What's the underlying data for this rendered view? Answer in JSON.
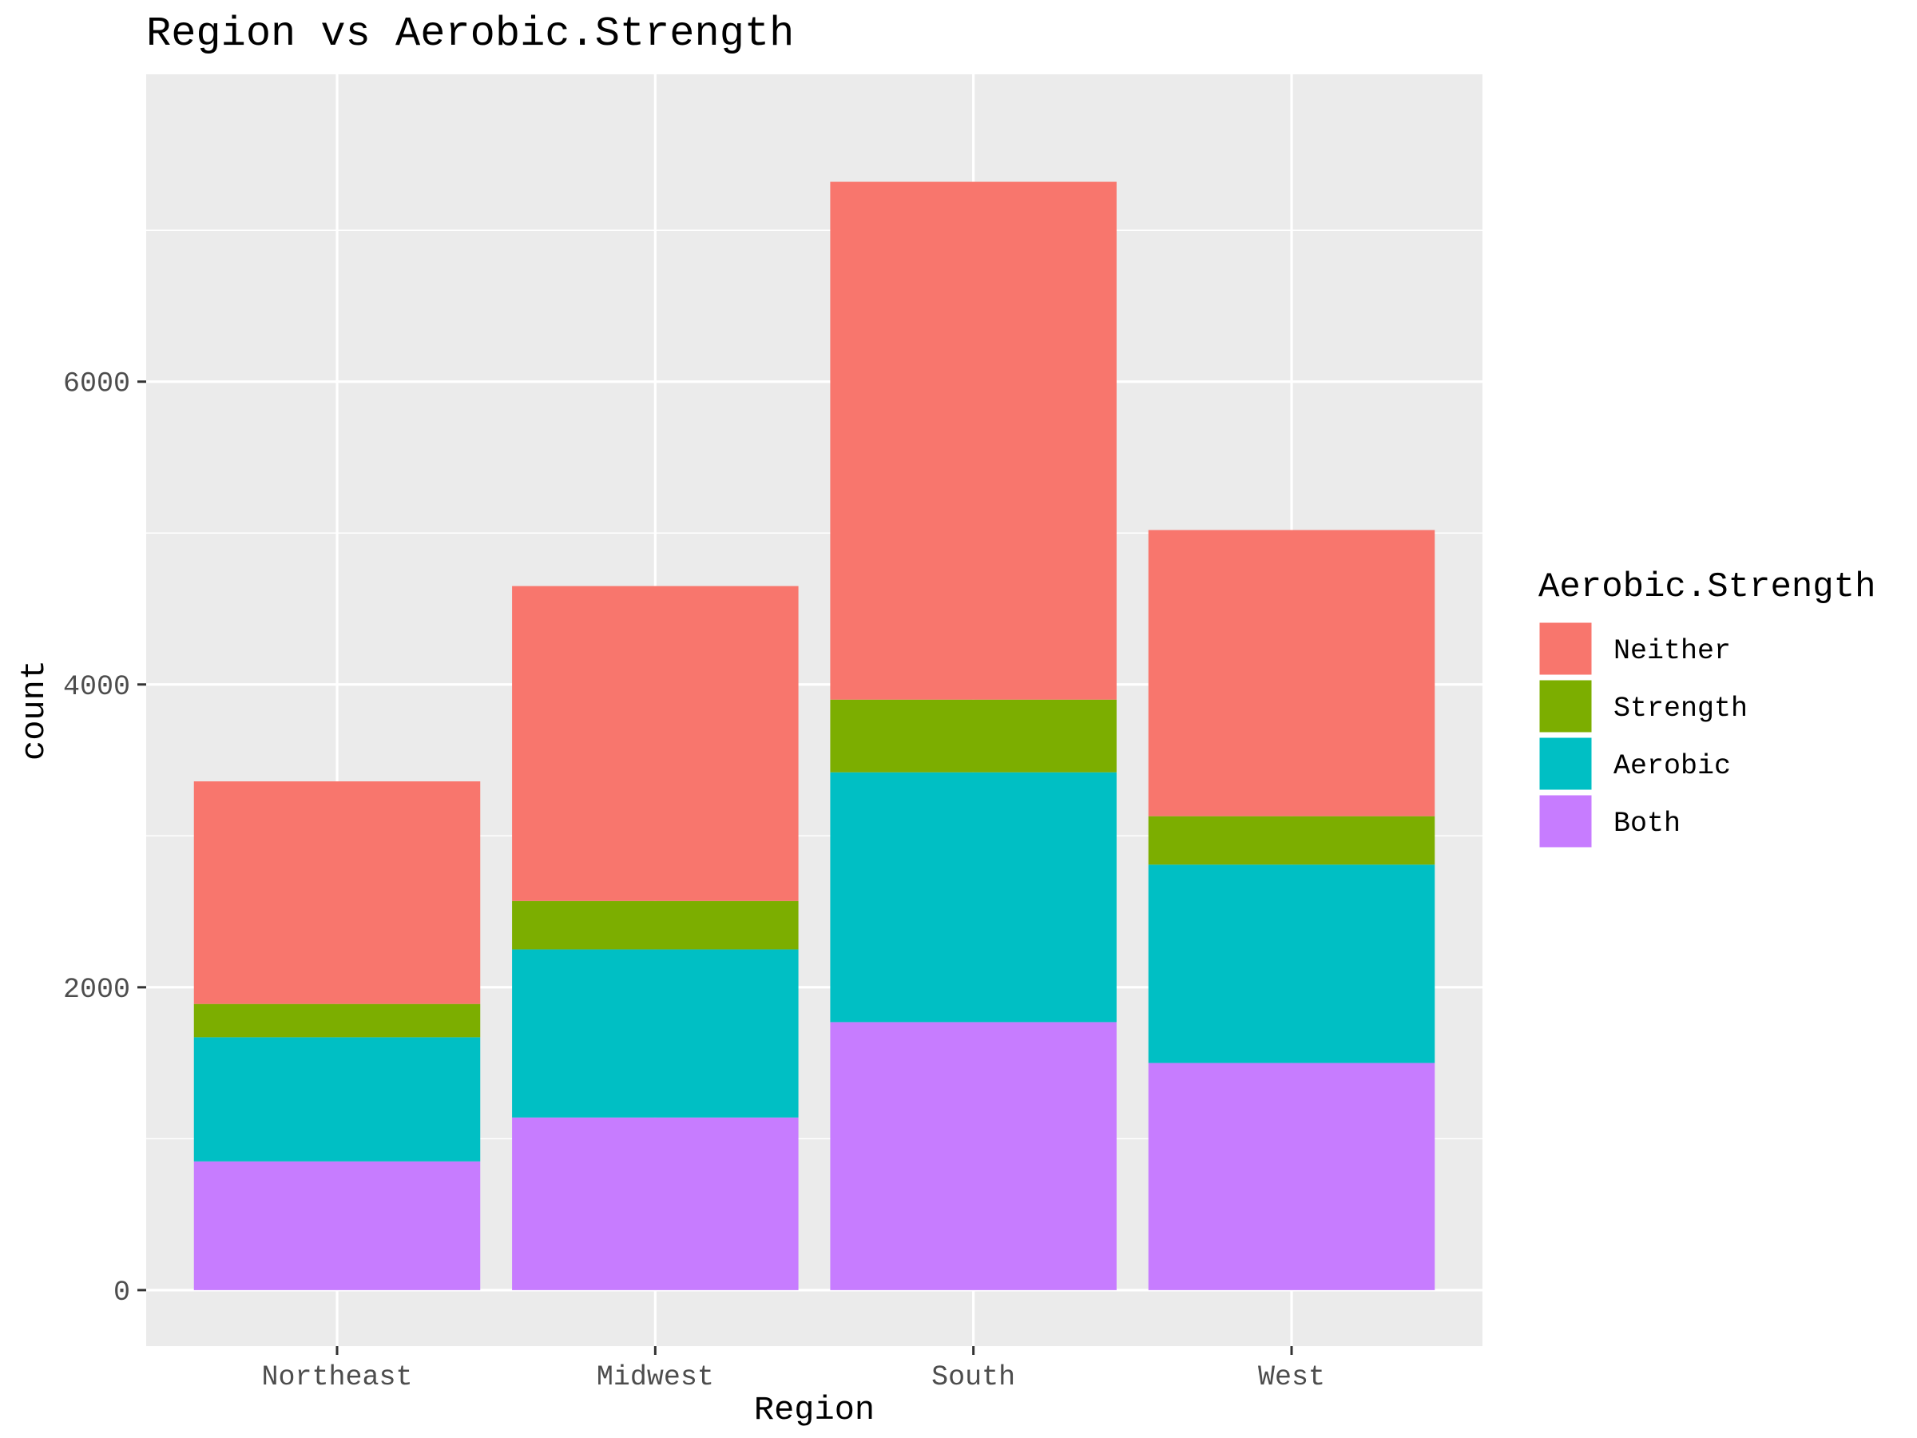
{
  "chart_data": {
    "type": "bar",
    "stacked": true,
    "title": "Region vs Aerobic.Strength",
    "xlabel": "Region",
    "ylabel": "count",
    "categories": [
      "Northeast",
      "Midwest",
      "South",
      "West"
    ],
    "ylim": [
      -370,
      8030
    ],
    "yticks": [
      0,
      2000,
      4000,
      6000
    ],
    "grid": true,
    "legend": {
      "title": "Aerobic.Strength",
      "position": "right",
      "order": [
        "Neither",
        "Strength",
        "Aerobic",
        "Both"
      ]
    },
    "series": [
      {
        "name": "Both",
        "color": "#C77CFF",
        "values": [
          850,
          1140,
          1770,
          1500
        ]
      },
      {
        "name": "Aerobic",
        "color": "#00BFC4",
        "values": [
          820,
          1110,
          1650,
          1310
        ]
      },
      {
        "name": "Strength",
        "color": "#7CAE00",
        "values": [
          220,
          320,
          480,
          320
        ]
      },
      {
        "name": "Neither",
        "color": "#F8766D",
        "values": [
          1470,
          2080,
          3420,
          1890
        ]
      }
    ]
  }
}
